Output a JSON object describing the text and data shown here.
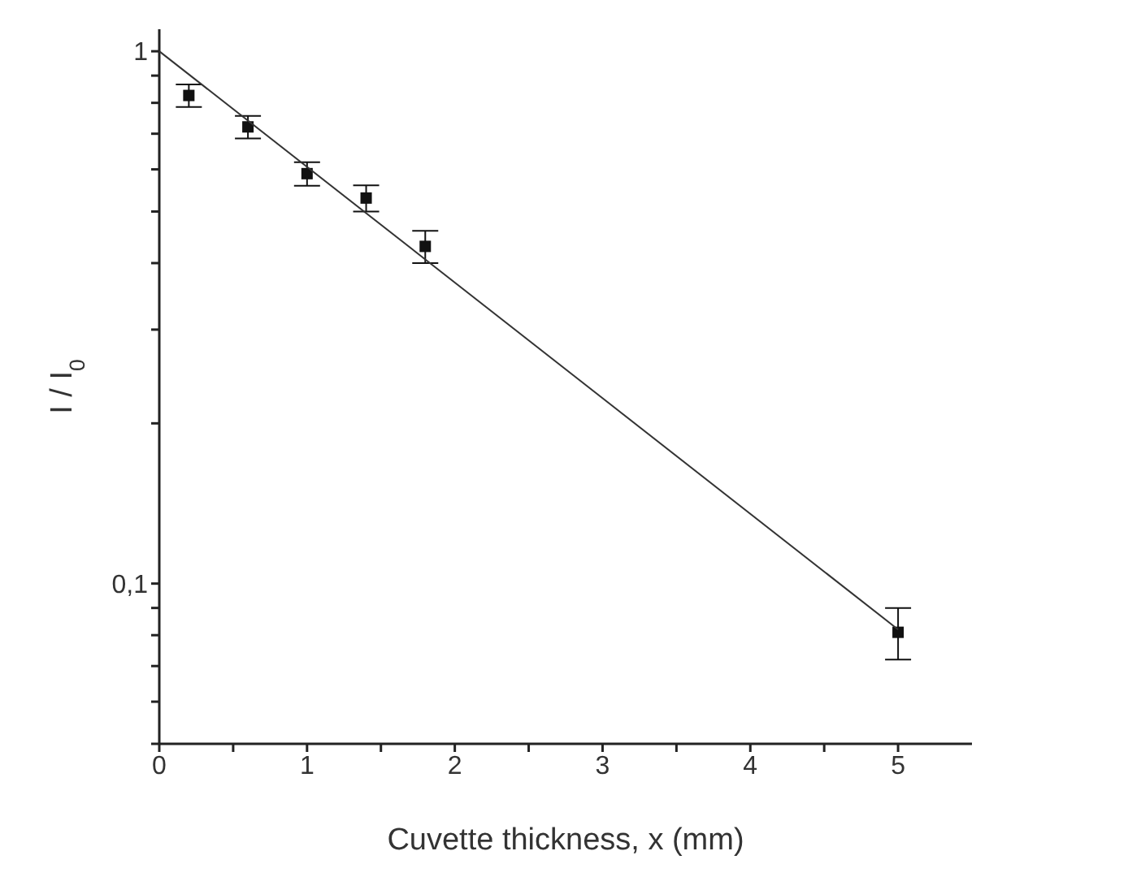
{
  "chart_data": {
    "type": "scatter",
    "xlabel": "Cuvette thickness, x  (mm)",
    "ylabel": "I / I$_{0}$",
    "log": "y",
    "xlim": [
      0,
      5.5
    ],
    "xticks": [
      0,
      {
        "value": 0.5,
        "label": null
      },
      1,
      {
        "value": 1.5,
        "label": null
      },
      2,
      {
        "value": 2.5,
        "label": null
      },
      3,
      {
        "value": 3.5,
        "label": null
      },
      4,
      {
        "value": 4.5,
        "label": null
      },
      5
    ],
    "ylim": [
      0.05,
      1.1
    ],
    "yticks": [
      {
        "value": 0.05,
        "label": null
      },
      {
        "value": 0.06,
        "label": null
      },
      {
        "value": 0.07,
        "label": null
      },
      {
        "value": 0.08,
        "label": null
      },
      {
        "value": 0.09,
        "label": null
      },
      {
        "value": 0.1,
        "label": "0,1"
      },
      {
        "value": 0.2,
        "label": null
      },
      {
        "value": 0.3,
        "label": null
      },
      {
        "value": 0.4,
        "label": null
      },
      {
        "value": 0.5,
        "label": null
      },
      {
        "value": 0.6,
        "label": null
      },
      {
        "value": 0.7,
        "label": null
      },
      {
        "value": 0.8,
        "label": null
      },
      {
        "value": 0.9,
        "label": null
      },
      1
    ],
    "series": [
      {
        "marker": "square",
        "color": "#111111",
        "x": [
          0.2,
          0.6,
          1.0,
          1.4,
          1.8,
          5.0
        ],
        "values": [
          0.826,
          0.721,
          0.589,
          0.53,
          0.43,
          0.081
        ],
        "errors": [
          0.04,
          0.035,
          0.03,
          0.03,
          0.03,
          0.009
        ]
      },
      {
        "type": "line",
        "marker": "none",
        "color": "#333333",
        "x": [
          0,
          5
        ],
        "values": [
          1,
          0.082
        ]
      }
    ]
  }
}
